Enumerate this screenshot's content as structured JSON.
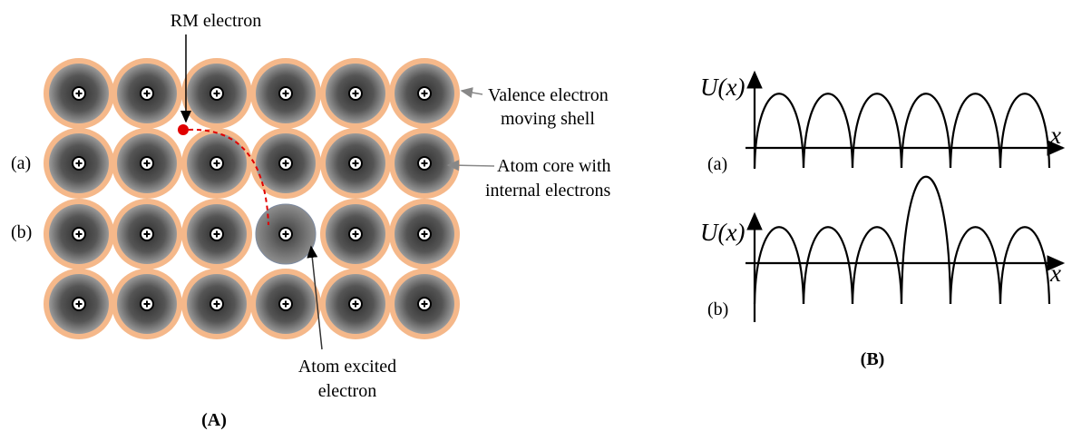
{
  "panel_a": {
    "rm_electron": "RM electron",
    "valence_shell": [
      "Valence electron",
      "moving shell"
    ],
    "row_a": "(a)",
    "row_b": "(b)",
    "atom_core": [
      "Atom core with",
      "internal electrons"
    ],
    "atom_excited": [
      "Atom excited",
      "electron"
    ],
    "caption": "(A)"
  },
  "panel_b": {
    "plot_a": {
      "y_label": "U(x)",
      "x_label": "x",
      "label": "(a)"
    },
    "plot_b": {
      "y_label": "U(x)",
      "x_label": "x",
      "label": "(b)"
    },
    "caption": "(B)"
  }
}
